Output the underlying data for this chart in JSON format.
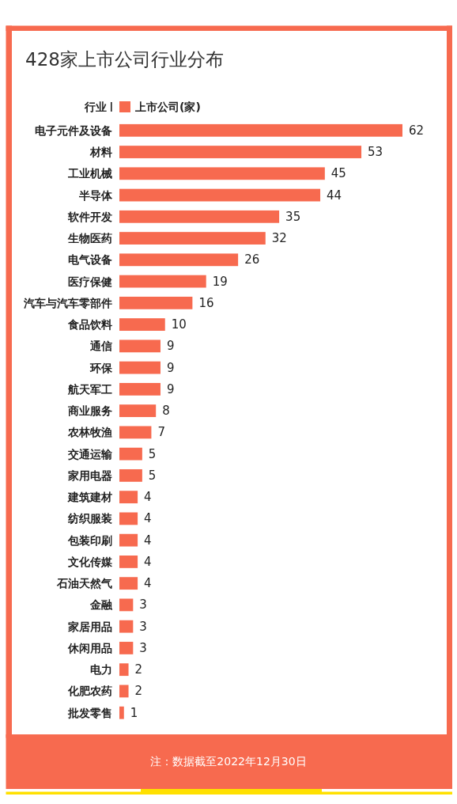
{
  "chart_data": {
    "type": "bar",
    "orientation": "horizontal",
    "title": "428家上市公司行业分布",
    "ylabel": "行业",
    "categories": [
      "电子元件及设备",
      "材料",
      "工业机械",
      "半导体",
      "软件开发",
      "生物医药",
      "电气设备",
      "医疗保健",
      "汽车与汽车零部件",
      "食品饮料",
      "通信",
      "环保",
      "航天军工",
      "商业服务",
      "农林牧渔",
      "交通运输",
      "家用电器",
      "建筑建材",
      "纺织服装",
      "包装印刷",
      "文化传媒",
      "石油天然气",
      "金融",
      "家居用品",
      "休闲用品",
      "电力",
      "化肥农药",
      "批发零售"
    ],
    "series": [
      {
        "name": "上市公司(家)",
        "color": "#f76a4f",
        "values": [
          62,
          53,
          45,
          44,
          35,
          32,
          26,
          19,
          16,
          10,
          9,
          9,
          9,
          8,
          7,
          5,
          5,
          4,
          4,
          4,
          4,
          4,
          3,
          3,
          3,
          2,
          2,
          1
        ]
      }
    ],
    "data_labels": true,
    "legend": "top",
    "annotations": [
      "注：数据截至2022年12月30日"
    ]
  }
}
